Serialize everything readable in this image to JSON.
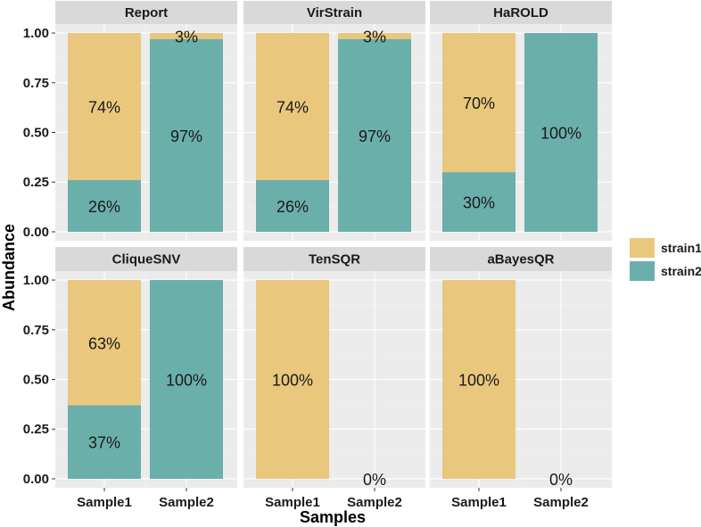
{
  "chart_data": {
    "type": "bar",
    "stacked": true,
    "ylabel": "Abundance",
    "xlabel": "Samples",
    "categories": [
      "Sample1",
      "Sample2"
    ],
    "ylim": [
      0,
      1
    ],
    "yticks": [
      0,
      0.25,
      0.5,
      0.75,
      1
    ],
    "ytick_labels": [
      "0.00",
      "0.25",
      "0.50",
      "0.75",
      "1.00"
    ],
    "legend": {
      "position": "right",
      "entries": [
        {
          "name": "strain1",
          "color": "#E9C77D"
        },
        {
          "name": "strain2",
          "color": "#6BAFAB"
        }
      ]
    },
    "panels": [
      {
        "title": "Report",
        "series": [
          {
            "name": "strain1",
            "values": [
              0.74,
              0.03
            ],
            "labels": [
              "74%",
              "3%"
            ]
          },
          {
            "name": "strain2",
            "values": [
              0.26,
              0.97
            ],
            "labels": [
              "26%",
              "97%"
            ]
          }
        ]
      },
      {
        "title": "VirStrain",
        "series": [
          {
            "name": "strain1",
            "values": [
              0.74,
              0.03
            ],
            "labels": [
              "74%",
              "3%"
            ]
          },
          {
            "name": "strain2",
            "values": [
              0.26,
              0.97
            ],
            "labels": [
              "26%",
              "97%"
            ]
          }
        ]
      },
      {
        "title": "HaROLD",
        "series": [
          {
            "name": "strain1",
            "values": [
              0.7,
              0
            ],
            "labels": [
              "70%",
              null
            ]
          },
          {
            "name": "strain2",
            "values": [
              0.3,
              1.0
            ],
            "labels": [
              "30%",
              "100%"
            ]
          }
        ]
      },
      {
        "title": "CliqueSNV",
        "series": [
          {
            "name": "strain1",
            "values": [
              0.63,
              0
            ],
            "labels": [
              "63%",
              null
            ]
          },
          {
            "name": "strain2",
            "values": [
              0.37,
              1.0
            ],
            "labels": [
              "37%",
              "100%"
            ]
          }
        ]
      },
      {
        "title": "TenSQR",
        "series": [
          {
            "name": "strain1",
            "values": [
              1.0,
              0
            ],
            "labels": [
              "100%",
              "0%"
            ]
          },
          {
            "name": "strain2",
            "values": [
              0,
              0
            ],
            "labels": [
              null,
              null
            ]
          }
        ]
      },
      {
        "title": "aBayesQR",
        "series": [
          {
            "name": "strain1",
            "values": [
              1.0,
              0
            ],
            "labels": [
              "100%",
              "0%"
            ]
          },
          {
            "name": "strain2",
            "values": [
              0,
              0
            ],
            "labels": [
              null,
              null
            ]
          }
        ]
      }
    ]
  }
}
